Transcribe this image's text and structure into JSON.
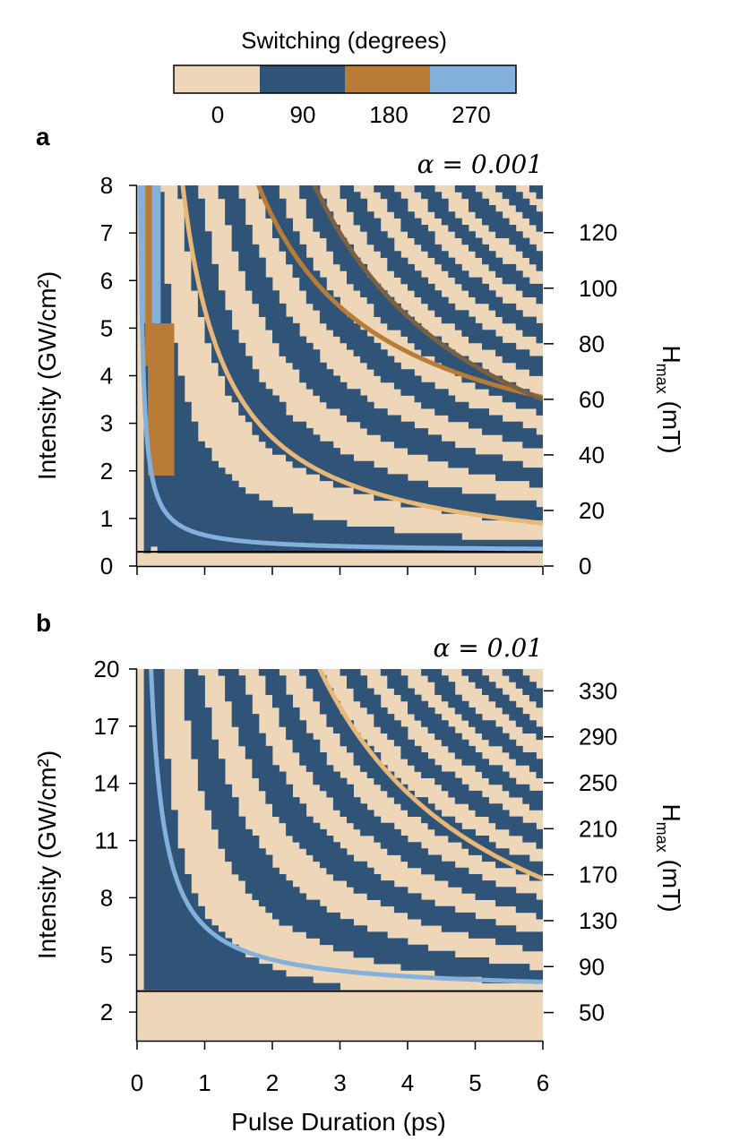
{
  "colorbar": {
    "title": "Switching (degrees)",
    "ticks": [
      "0",
      "90",
      "180",
      "270"
    ],
    "colors": [
      "#eed7b8",
      "#2f5478",
      "#b87c36",
      "#84b0dc"
    ]
  },
  "shared": {
    "xlabel": "Pulse Duration (ps)",
    "x_ticks": [
      "0",
      "1",
      "2",
      "3",
      "4",
      "5",
      "6"
    ],
    "xlim": [
      0,
      6
    ]
  },
  "chart_data": [
    {
      "panel": "a",
      "type": "heatmap",
      "alpha_label": "α = 0.001",
      "xlabel": "Pulse Duration (ps)",
      "ylabel": "Intensity (GW/cm²)",
      "y2label_main": "H",
      "y2label_sub": "max",
      "y2label_unit": " (mT)",
      "xlim": [
        0,
        6
      ],
      "ylim": [
        0,
        8
      ],
      "y_ticks": [
        0,
        1,
        2,
        3,
        4,
        5,
        6,
        7,
        8
      ],
      "y_tick_labels": [
        "0",
        "1",
        "2",
        "3",
        "4",
        "5",
        "6",
        "7",
        "8"
      ],
      "y2_ticks": [
        0,
        20,
        40,
        60,
        80,
        100,
        120
      ],
      "y2_tick_labels": [
        "0",
        "20",
        "40",
        "60",
        "80",
        "100",
        "120"
      ],
      "y2lim": [
        0,
        137
      ],
      "threshold_intensity": 0.3,
      "band_constant": 2.25,
      "curves": [
        {
          "name": "90-degree boundary",
          "color": "#84b0dc",
          "k": 0.35,
          "offset": 0.3
        },
        {
          "name": "180-degree boundary",
          "color": "#e8b878",
          "k": 5.4,
          "offset": 0
        },
        {
          "name": "270-degree boundary",
          "color": "#b87c36",
          "k": 11.4,
          "offset": 1.65
        },
        {
          "name": "360-degree boundary",
          "color": "#7b6143",
          "k": 21.0,
          "offset": 0
        }
      ],
      "regions": [
        {
          "value": 180,
          "color": "#b87c36",
          "x": [
            0.16,
            0.55
          ],
          "y": [
            1.9,
            5.1
          ]
        },
        {
          "value": 270,
          "color": "#84b0dc",
          "x": [
            0.08,
            0.35
          ],
          "y": [
            5.1,
            8.0
          ]
        },
        {
          "value": 180,
          "color": "#b87c36",
          "x": [
            0.12,
            0.22
          ],
          "y": [
            4.2,
            8.0
          ]
        }
      ]
    },
    {
      "panel": "b",
      "type": "heatmap",
      "alpha_label": "α = 0.01",
      "xlabel": "Pulse Duration (ps)",
      "ylabel": "Intensity (GW/cm²)",
      "y2label_main": "H",
      "y2label_sub": "max",
      "y2label_unit": " (mT)",
      "xlim": [
        0,
        6
      ],
      "ylim": [
        0.5,
        20
      ],
      "y_ticks": [
        2,
        5,
        8,
        11,
        14,
        17,
        20
      ],
      "y_tick_labels": [
        "2",
        "5",
        "8",
        "11",
        "14",
        "17",
        "20"
      ],
      "y2_ticks": [
        50,
        90,
        130,
        170,
        210,
        250,
        290,
        330
      ],
      "y2_tick_labels": [
        "50",
        "90",
        "130",
        "170",
        "210",
        "250",
        "290",
        "330"
      ],
      "y2lim": [
        25.5,
        349
      ],
      "threshold_intensity": 3.1,
      "band_constant": 5.4,
      "curves": [
        {
          "name": "90-degree boundary",
          "color": "#84b0dc",
          "k": 3.5,
          "offset": 3.0
        },
        {
          "name": "180-degree boundary",
          "color": "#e8b878",
          "k": 54.0,
          "offset": 0
        }
      ],
      "regions": []
    }
  ]
}
